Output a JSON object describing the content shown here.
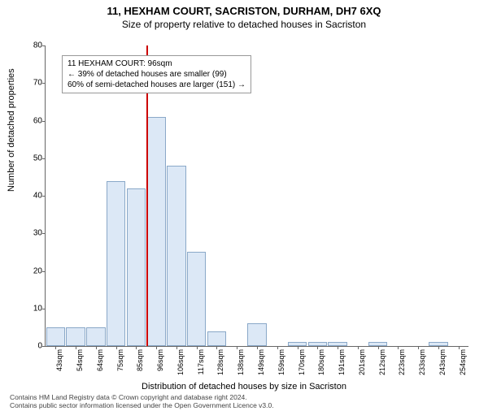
{
  "title_main": "11, HEXHAM COURT, SACRISTON, DURHAM, DH7 6XQ",
  "title_sub": "Size of property relative to detached houses in Sacriston",
  "ylabel": "Number of detached properties",
  "xlabel": "Distribution of detached houses by size in Sacriston",
  "chart": {
    "type": "bar",
    "ylim": [
      0,
      80
    ],
    "ytick_step": 10,
    "bar_fill": "#dce8f6",
    "bar_border": "#8aa8c8",
    "refline_color": "#cc0000",
    "refline_x_index": 5,
    "x_labels": [
      "43sqm",
      "54sqm",
      "64sqm",
      "75sqm",
      "85sqm",
      "96sqm",
      "106sqm",
      "117sqm",
      "128sqm",
      "138sqm",
      "149sqm",
      "159sqm",
      "170sqm",
      "180sqm",
      "191sqm",
      "201sqm",
      "212sqm",
      "223sqm",
      "233sqm",
      "243sqm",
      "254sqm"
    ],
    "values": [
      5,
      5,
      5,
      44,
      42,
      61,
      48,
      25,
      4,
      0,
      6,
      0,
      1,
      1,
      1,
      0,
      1,
      0,
      0,
      1,
      0
    ]
  },
  "annotation": {
    "line1": "11 HEXHAM COURT: 96sqm",
    "line2": "← 39% of detached houses are smaller (99)",
    "line3": "60% of semi-detached houses are larger (151) →"
  },
  "credit": {
    "line1": "Contains HM Land Registry data © Crown copyright and database right 2024.",
    "line2": "Contains public sector information licensed under the Open Government Licence v3.0."
  }
}
